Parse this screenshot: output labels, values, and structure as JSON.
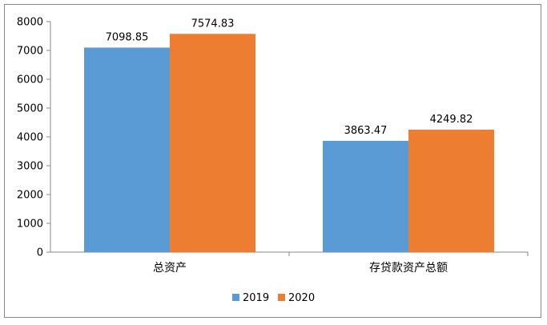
{
  "chart_data": {
    "type": "bar",
    "categories": [
      "总资产",
      "存贷款资产总额"
    ],
    "series": [
      {
        "name": "2019",
        "values": [
          7098.85,
          3863.47
        ],
        "color": "#5b9bd5"
      },
      {
        "name": "2020",
        "values": [
          7574.83,
          4249.82
        ],
        "color": "#ed7d31"
      }
    ],
    "data_labels": [
      [
        "7098.85",
        "3863.47"
      ],
      [
        "7574.83",
        "4249.82"
      ]
    ],
    "ylim": [
      0,
      8000
    ],
    "yticks": [
      "0",
      "1000",
      "2000",
      "3000",
      "4000",
      "5000",
      "6000",
      "7000",
      "8000"
    ],
    "grid": false,
    "legend_placement": "bottom"
  }
}
